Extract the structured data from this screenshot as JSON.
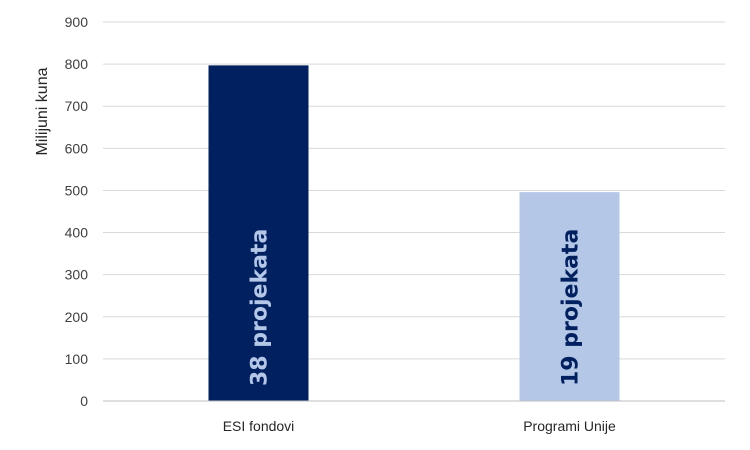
{
  "chart_data": {
    "type": "bar",
    "title": "",
    "xlabel": "",
    "ylabel": "Milijuni kuna",
    "ylim": [
      0,
      900
    ],
    "yticks": [
      0,
      100,
      200,
      300,
      400,
      500,
      600,
      700,
      800,
      900
    ],
    "grid": true,
    "legend": "none",
    "categories": [
      "ESI fondovi",
      "Programi Unije"
    ],
    "values": [
      797,
      496
    ],
    "bar_labels": [
      "38 projekata",
      "19 projekata"
    ],
    "bar_colors": [
      "#002060",
      "#B4C7E7"
    ],
    "bar_label_colors": [
      "#B4C7E7",
      "#002060"
    ]
  }
}
